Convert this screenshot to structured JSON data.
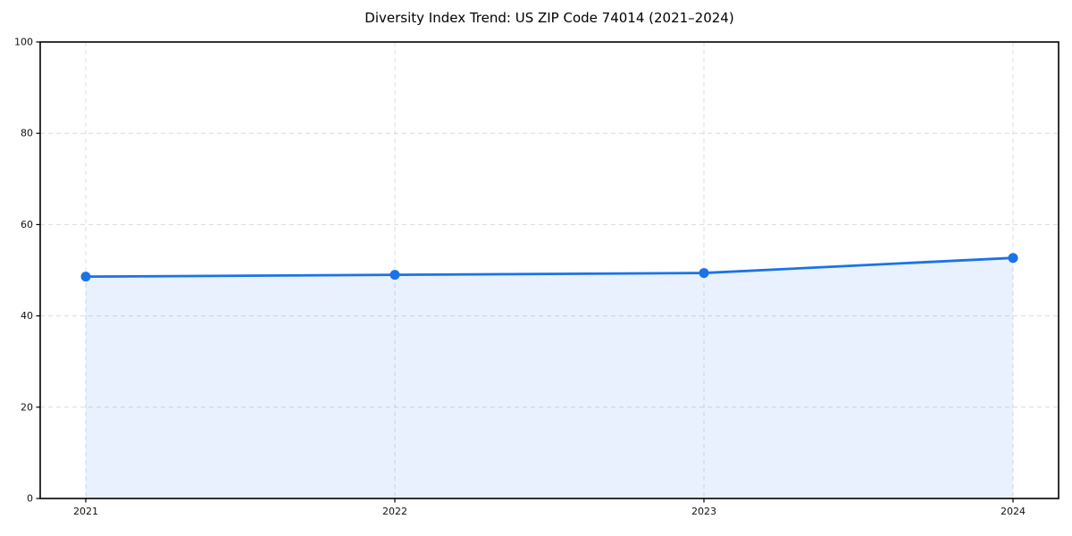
{
  "page": {
    "background": "#ffffff"
  },
  "chart_data": {
    "type": "line",
    "title": "Diversity Index Trend: US ZIP Code 74014 (2021–2024)",
    "x": [
      2021,
      2022,
      2023,
      2024
    ],
    "x_tick_labels": [
      "2021",
      "2022",
      "2023",
      "2024"
    ],
    "series": [
      {
        "name": "Diversity Index",
        "values": [
          48.6,
          49.0,
          49.4,
          52.7
        ]
      }
    ],
    "xlabel": "",
    "ylabel": "",
    "ylim": [
      0,
      100
    ],
    "y_ticks": [
      0,
      20,
      40,
      60,
      80,
      100
    ],
    "grid": true,
    "grid_style": "dashed",
    "legend_position": "none",
    "area_fill": true,
    "marker": "circle",
    "colors": {
      "line": "#1a73e8",
      "marker": "#1a73e8",
      "area_fill": "rgba(26,115,232,0.10)",
      "grid": "#dcdcdc",
      "spine": "#000000",
      "tick_text": "#111111",
      "title_text": "#000000",
      "background": "#ffffff"
    }
  }
}
